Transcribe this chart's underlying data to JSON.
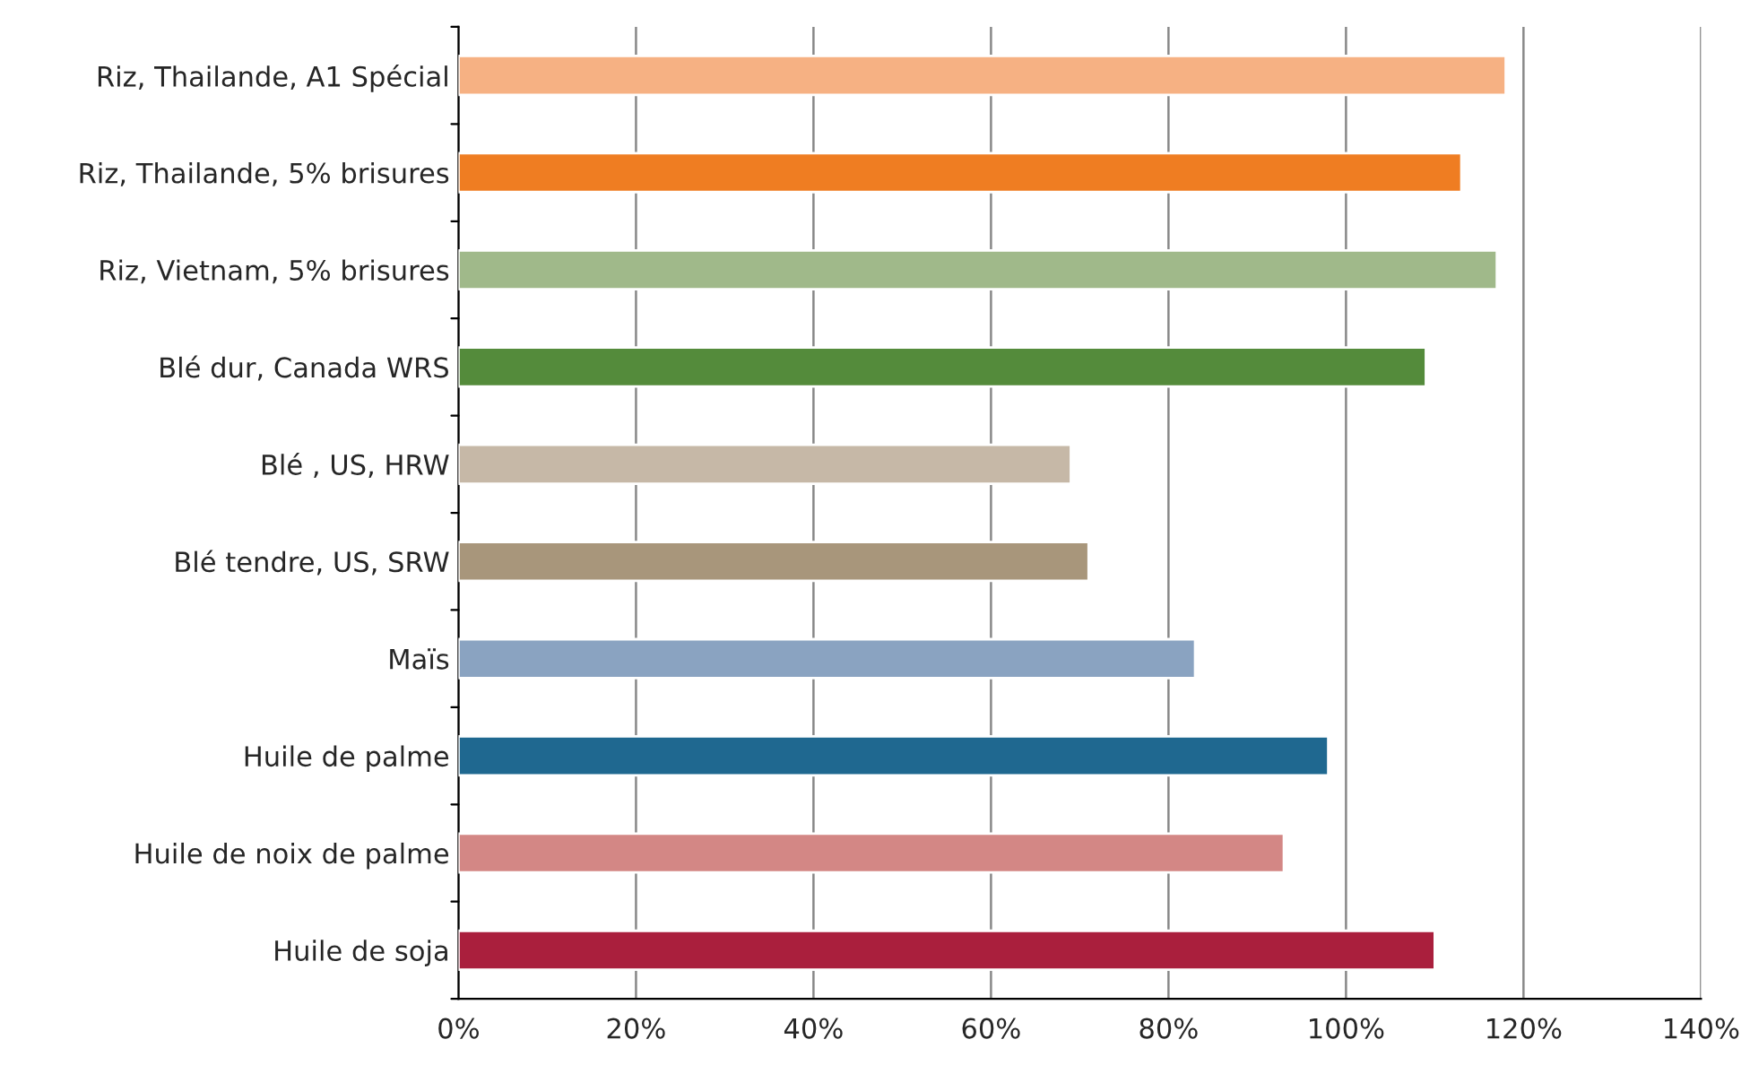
{
  "chart_data": {
    "type": "bar",
    "orientation": "horizontal",
    "categories": [
      "Riz, Thailande, A1 Spécial",
      "Riz, Thailande, 5% brisures",
      "Riz, Vietnam, 5% brisures",
      "Blé dur, Canada WRS",
      "Blé , US, HRW",
      "Blé tendre, US, SRW",
      "Maïs",
      "Huile de palme",
      "Huile de noix de palme",
      "Huile de soja"
    ],
    "values": [
      118,
      113,
      117,
      109,
      69,
      71,
      83,
      98,
      93,
      110
    ],
    "colors": [
      "#f6b183",
      "#ef7d22",
      "#a0b98a",
      "#548b3b",
      "#c6b8a7",
      "#a8967b",
      "#8aa3c1",
      "#1f6890",
      "#d38785",
      "#aa1f3d"
    ],
    "xlim": [
      0,
      140
    ],
    "xticks": [
      {
        "value": 0,
        "label": "0%"
      },
      {
        "value": 20,
        "label": "20%"
      },
      {
        "value": 40,
        "label": "40%"
      },
      {
        "value": 60,
        "label": "60%"
      },
      {
        "value": 80,
        "label": "80%"
      },
      {
        "value": 100,
        "label": "100%"
      },
      {
        "value": 120,
        "label": "120%"
      },
      {
        "value": 140,
        "label": "140%"
      }
    ],
    "grid": "x",
    "legend": false
  }
}
